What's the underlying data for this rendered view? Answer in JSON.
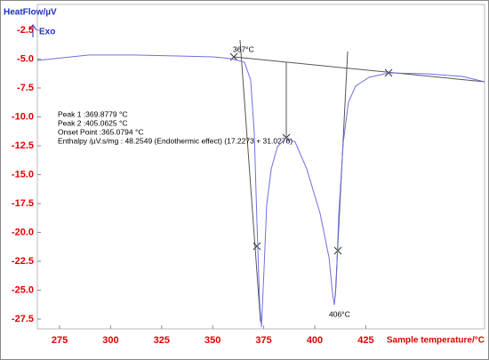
{
  "chart_data": {
    "type": "line",
    "y_label": "HeatFlow/µV",
    "exo_label": "Exo",
    "x_label": "Sample temperature/°C",
    "annotations": [
      "Peak 1 :369.8779 °C",
      "Peak 2 :405.0625 °C",
      "Onset Point :365.0794 °C",
      "Enthalpy /µV.s/mg : 48.2549 (Endothermic effect) (17.2273 + 31.0276)"
    ],
    "point_labels": [
      "367°C",
      "406°C"
    ],
    "xlim": [
      264.1,
      483.2
    ],
    "ylim": [
      -28.35,
      -0.27
    ],
    "xticks": [
      275,
      300,
      325,
      350,
      375,
      400,
      425
    ],
    "yticks": [
      {
        "value": -2.5,
        "label": "-2.5"
      },
      {
        "value": -5,
        "label": "-5.0"
      },
      {
        "value": -7.5,
        "label": "-7.5"
      },
      {
        "value": -10,
        "label": "-10.0"
      },
      {
        "value": -12.5,
        "label": "-12.5"
      },
      {
        "value": -15,
        "label": "-15.0"
      },
      {
        "value": -17.5,
        "label": "-17.5"
      },
      {
        "value": -20,
        "label": "-20.0"
      },
      {
        "value": -22.5,
        "label": "-22.5"
      },
      {
        "value": -25,
        "label": "-25.0"
      },
      {
        "value": -27.5,
        "label": "-27.5"
      }
    ],
    "series": [
      {
        "color": "#6f6fe0",
        "x": [
          264.1,
          289.4,
          311.1,
          332.9,
          350.3,
          359.1,
          365.6,
          368.6,
          370.4,
          371.7,
          373.0,
          373.9,
          375.2,
          376.5,
          378.7,
          381.7,
          386.1,
          390.4,
          396.1,
          402.6,
          407.0,
          408.7,
          409.6,
          410.5,
          411.8,
          414.0,
          416.5,
          420.0,
          426.6,
          436.2,
          454.9,
          472.3,
          483.2
        ],
        "values": [
          -5.12,
          -4.65,
          -4.65,
          -4.73,
          -4.81,
          -4.96,
          -5.27,
          -6.81,
          -11.42,
          -19.12,
          -26.04,
          -28.19,
          -22.96,
          -17.58,
          -14.5,
          -12.58,
          -11.81,
          -12.19,
          -14.5,
          -18.35,
          -22.19,
          -25.27,
          -26.27,
          -24.5,
          -18.35,
          -12.19,
          -8.73,
          -7.35,
          -6.58,
          -6.19,
          -6.27,
          -6.5,
          -6.96
        ]
      }
    ]
  }
}
